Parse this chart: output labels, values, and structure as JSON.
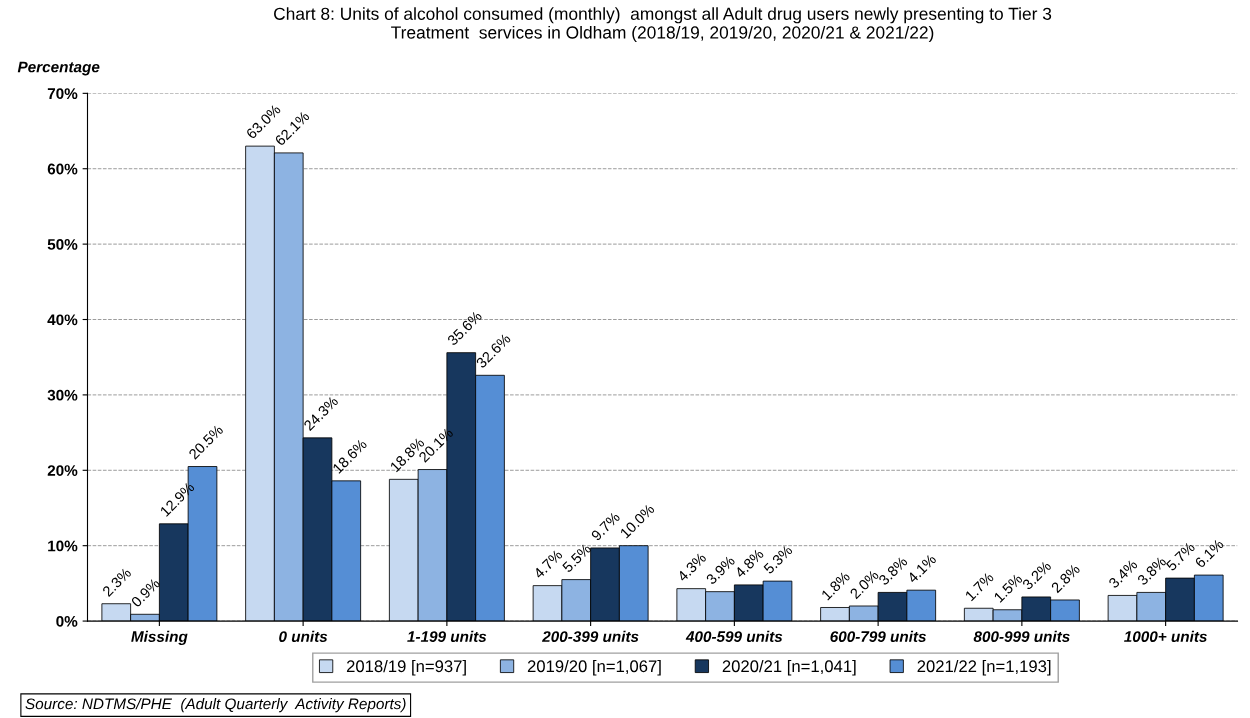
{
  "chart_data": {
    "type": "bar",
    "title": "Chart 8: Units of alcohol consumed (monthly)  amongst all Adult drug users newly presenting to Tier 3\nTreatment  services in Oldham (2018/19, 2019/20, 2020/21 & 2021/22)",
    "ylabel": "Percentage",
    "categories": [
      "Missing",
      "0 units",
      "1-199 units",
      "200-399 units",
      "400-599 units",
      "600-799 units",
      "800-999 units",
      "1000+ units"
    ],
    "series": [
      {
        "name": "2018/19 [n=937]",
        "color": "#c6d9f1",
        "values": [
          2.3,
          63.0,
          18.8,
          4.7,
          4.3,
          1.8,
          1.7,
          3.4
        ],
        "value_labels": [
          "2.3%",
          "63.0%",
          "18.8%",
          "4.7%",
          "4.3%",
          "1.8%",
          "1.7%",
          "3.4%"
        ]
      },
      {
        "name": "2019/20 [n=1,067]",
        "color": "#8db3e2",
        "values": [
          0.9,
          62.1,
          20.1,
          5.5,
          3.9,
          2.0,
          1.5,
          3.8
        ],
        "value_labels": [
          "0.9%",
          "62.1%",
          "20.1%",
          "5.5%",
          "3.9%",
          "2.0%",
          "1.5%",
          "3.8%"
        ]
      },
      {
        "name": "2020/21 [n=1,041]",
        "color": "#17375e",
        "values": [
          12.9,
          24.3,
          35.6,
          9.7,
          4.8,
          3.8,
          3.2,
          5.7
        ],
        "value_labels": [
          "12.9%",
          "24.3%",
          "35.6%",
          "9.7%",
          "4.8%",
          "3.8%",
          "3.2%",
          "5.7%"
        ]
      },
      {
        "name": "2021/22 [n=1,193]",
        "color": "#558ed5",
        "values": [
          20.5,
          18.6,
          32.6,
          10.0,
          5.3,
          4.1,
          2.8,
          6.1
        ],
        "value_labels": [
          "20.5%",
          "18.6%",
          "32.6%",
          "10.0%",
          "5.3%",
          "4.1%",
          "2.8%",
          "6.1%"
        ]
      }
    ],
    "ylim": [
      0,
      70
    ],
    "yticks": [
      {
        "value": 0,
        "label": "0%"
      },
      {
        "value": 10,
        "label": "10%"
      },
      {
        "value": 20,
        "label": "20%"
      },
      {
        "value": 30,
        "label": "30%"
      },
      {
        "value": 40,
        "label": "40%"
      },
      {
        "value": 50,
        "label": "50%"
      },
      {
        "value": 60,
        "label": "60%"
      },
      {
        "value": 70,
        "label": "70%"
      }
    ],
    "grid": "y",
    "legend": "bottom",
    "annotations": [
      "Source: NDTMS/PHE  (Adult Quarterly  Activity Reports)"
    ]
  }
}
